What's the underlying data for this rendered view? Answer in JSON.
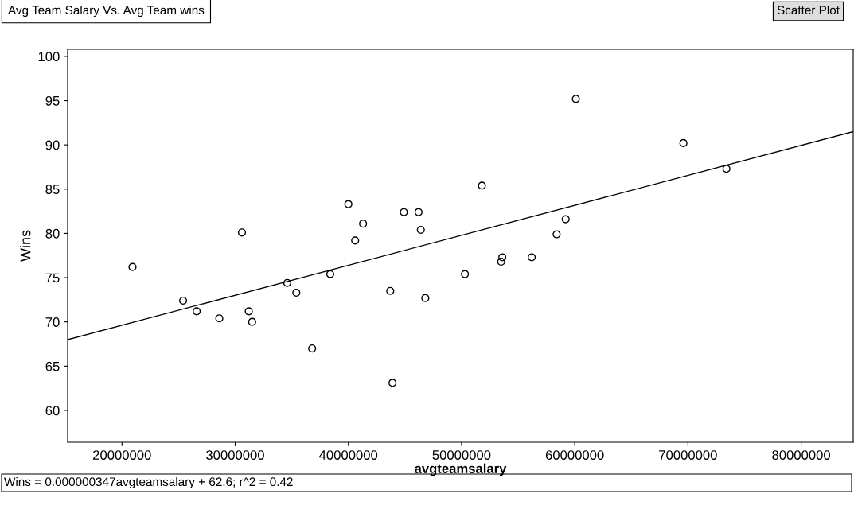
{
  "chart_data": {
    "type": "scatter",
    "title": "Avg Team Salary Vs. Avg Team wins",
    "xlabel": "avgteamsalary",
    "ylabel": "Wins",
    "annotations": [
      "Scatter Plot",
      "Wins = 0.000000347avgteamsalary + 62.6; r^2 = 0.42"
    ],
    "series": [
      {
        "color": "#000000",
        "marker": "circle",
        "x": [
          20930000,
          25400000,
          26600000,
          28600000,
          30600000,
          31200000,
          31500000,
          34600000,
          35400000,
          36800000,
          38400000,
          40000000,
          40600000,
          41300000,
          43700000,
          43900000,
          44900000,
          46200000,
          46400000,
          46800000,
          50300000,
          51800000,
          53600000,
          53500000,
          56200000,
          58400000,
          59200000,
          60100000,
          69600000,
          73400000
        ],
        "values": [
          76.2,
          72.4,
          71.2,
          70.4,
          80.1,
          71.2,
          70.0,
          74.4,
          73.3,
          67.0,
          75.4,
          83.3,
          79.2,
          81.1,
          73.5,
          63.1,
          82.4,
          82.4,
          80.4,
          72.7,
          75.4,
          85.4,
          77.3,
          76.8,
          77.3,
          79.9,
          81.6,
          95.2,
          90.2,
          87.3
        ]
      },
      {
        "type": "line",
        "color": "#000000",
        "line_style": "solid",
        "x": [
          15200000,
          84600000
        ],
        "values": [
          68.0,
          91.5
        ]
      }
    ],
    "xlim": [
      15200000,
      84600000
    ],
    "ylim": [
      56.4,
      100.8
    ],
    "xticks": [
      20000000,
      30000000,
      40000000,
      50000000,
      60000000,
      70000000,
      80000000
    ],
    "yticks": [
      60,
      65,
      70,
      75,
      80,
      85,
      90,
      95,
      100
    ],
    "grid": false,
    "legend": false
  }
}
